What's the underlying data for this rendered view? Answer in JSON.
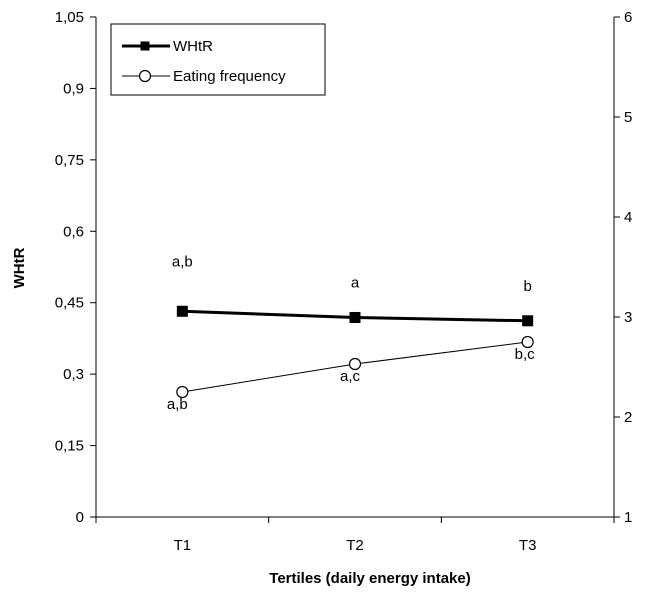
{
  "chart_data": {
    "type": "line",
    "categories": [
      "T1",
      "T2",
      "T3"
    ],
    "xlabel": "Tertiles (daily energy intake)",
    "ylabel": "WHtR",
    "ylabel_right": "",
    "ylim": [
      0,
      1.05
    ],
    "y2lim": [
      1,
      6
    ],
    "left_ticks": [
      "0",
      "0,15",
      "0,3",
      "0,45",
      "0,6",
      "0,75",
      "0,9",
      "1,05"
    ],
    "right_ticks": [
      "1",
      "2",
      "3",
      "4",
      "5",
      "6"
    ],
    "grid": false,
    "legend_position": "top-left",
    "series": [
      {
        "name": "WHtR",
        "axis": "left",
        "values": [
          0.432,
          0.419,
          0.412
        ],
        "marker": "filled-square",
        "color": "#000000",
        "annotations": [
          "a,b",
          "a",
          "b"
        ],
        "annotation_position": "above"
      },
      {
        "name": "Eating frequency",
        "axis": "right",
        "values": [
          2.25,
          2.53,
          2.75
        ],
        "marker": "open-circle",
        "color": "#000000",
        "annotations": [
          "a,b",
          "a,c",
          "b,c"
        ],
        "annotation_position": "below"
      }
    ]
  }
}
